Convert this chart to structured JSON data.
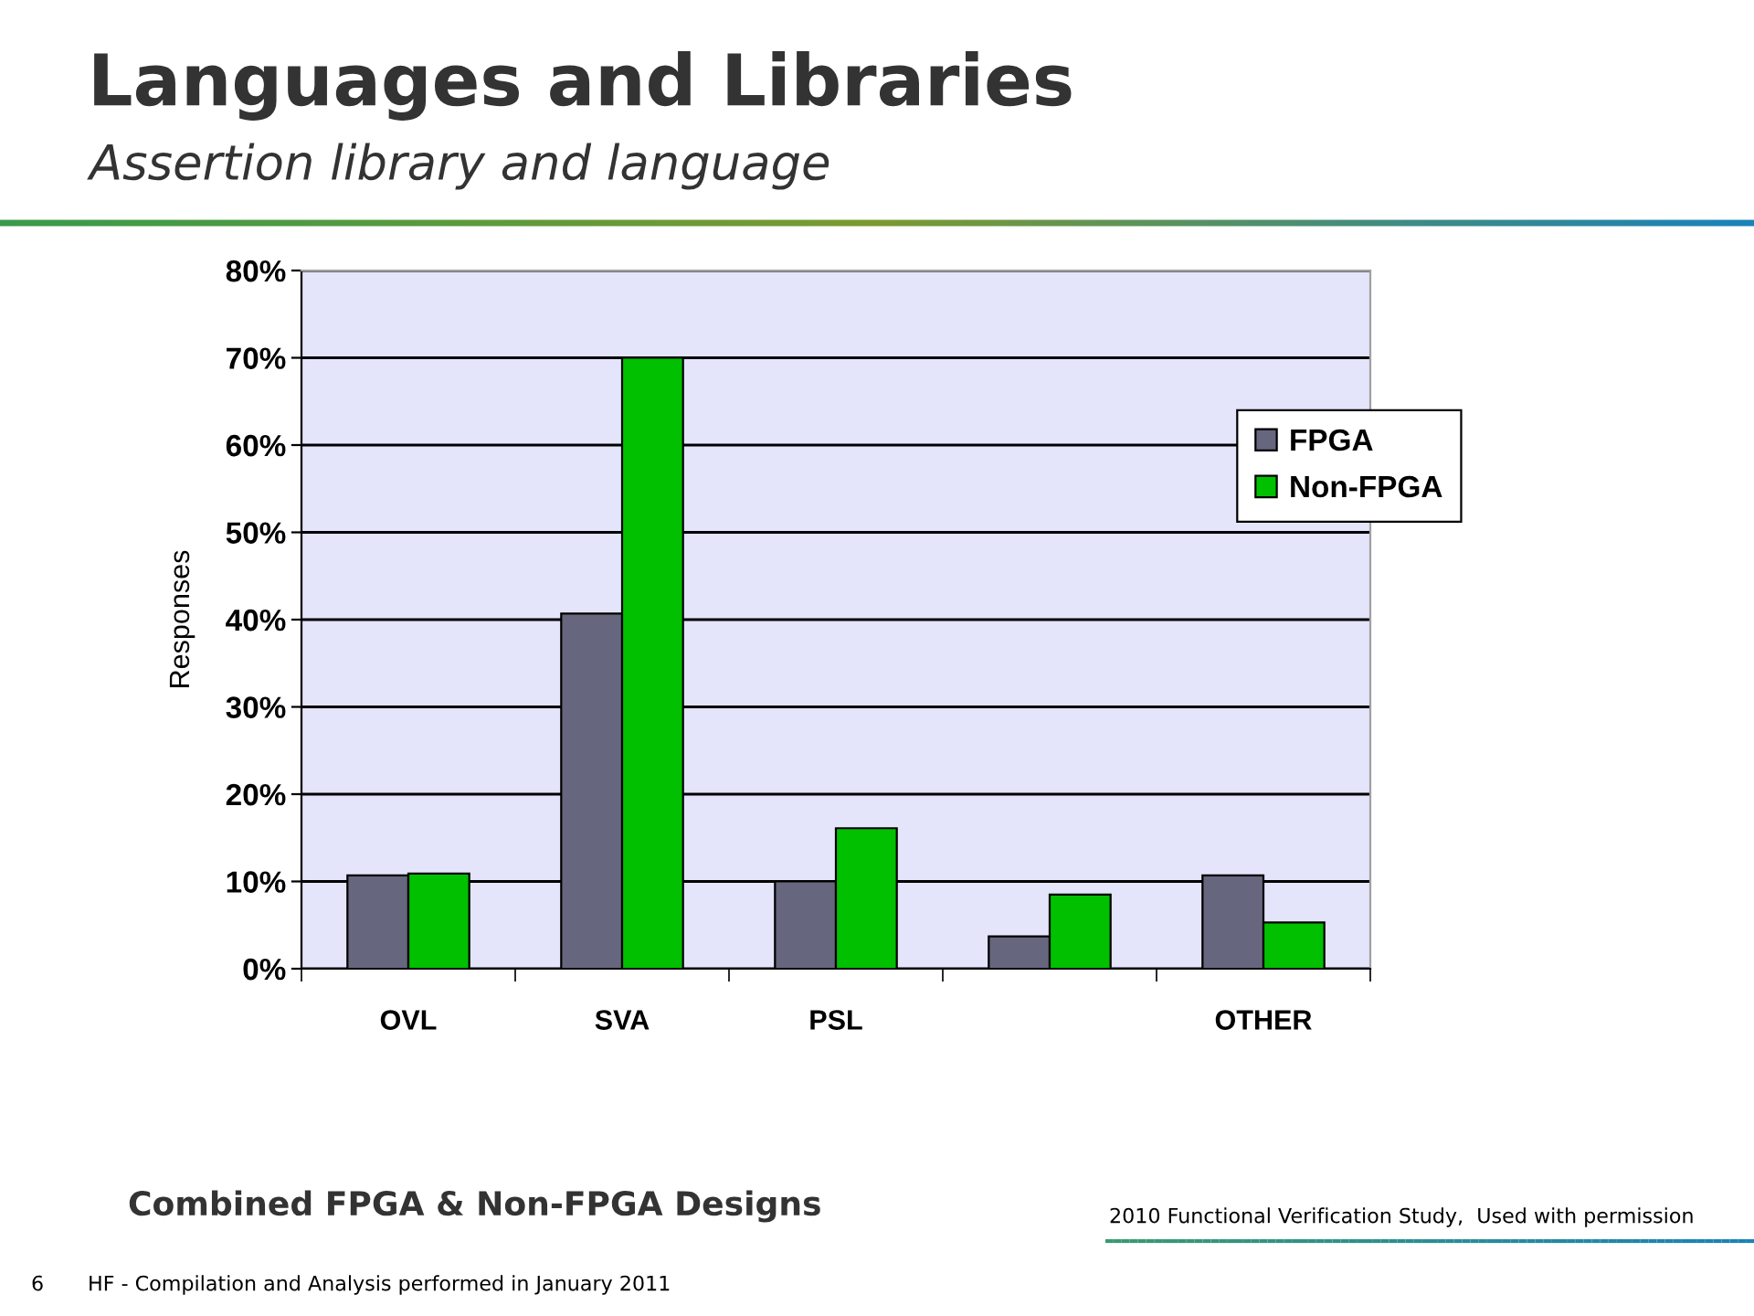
{
  "chart_data": {
    "type": "bar",
    "title": "Languages and Libraries",
    "subtitle": "Assertion library and language",
    "ylabel": "Responses",
    "categories": [
      "OVL",
      "SVA",
      "PSL",
      null,
      "OTHER"
    ],
    "series": [
      {
        "name": "FPGA",
        "color": "#66667f",
        "values": [
          10.7,
          40.7,
          10.0,
          3.7,
          10.7
        ]
      },
      {
        "name": "Non-FPGA",
        "color": "#00c000",
        "values": [
          10.9,
          70.0,
          16.1,
          8.5,
          5.3
        ]
      }
    ],
    "ylim": [
      0,
      80
    ],
    "yticks": [
      {
        "value": 0,
        "label": "0%"
      },
      {
        "value": 10,
        "label": "10%"
      },
      {
        "value": 20,
        "label": "20%"
      },
      {
        "value": 30,
        "label": "30%"
      },
      {
        "value": 40,
        "label": "40%"
      },
      {
        "value": 50,
        "label": "50%"
      },
      {
        "value": 60,
        "label": "60%"
      },
      {
        "value": 70,
        "label": "70%"
      },
      {
        "value": 80,
        "label": "80%"
      }
    ],
    "grid": "y",
    "legend": "top right",
    "annotations": [
      "Combined FPGA & Non-FPGA Designs",
      "2010 Functional Verification Study,  Used with permission",
      "6",
      "HF - Compilation and Analysis performed in January 2011"
    ]
  }
}
